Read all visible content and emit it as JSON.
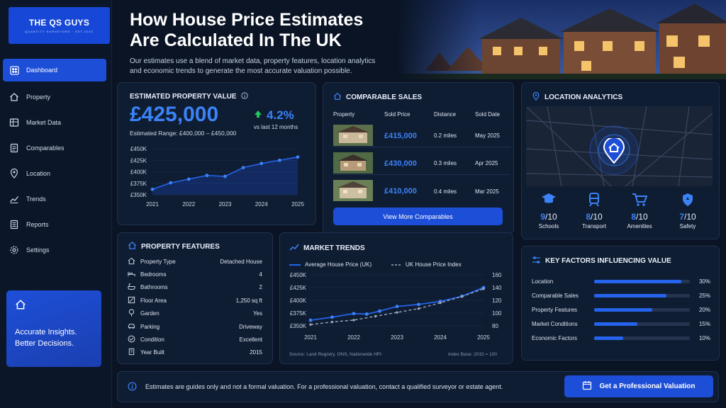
{
  "sidebar": {
    "logo_title": "THE QS GUYS",
    "logo_tagline": "QUANTITY SURVEYORS · EST 2020",
    "items": [
      {
        "label": "Dashboard",
        "icon": "dashboard-icon",
        "active": true
      },
      {
        "label": "Property",
        "icon": "home-icon"
      },
      {
        "label": "Market Data",
        "icon": "table-icon"
      },
      {
        "label": "Comparables",
        "icon": "document-icon"
      },
      {
        "label": "Location",
        "icon": "map-pin-icon"
      },
      {
        "label": "Trends",
        "icon": "trend-icon"
      },
      {
        "label": "Reports",
        "icon": "report-icon"
      },
      {
        "label": "Settings",
        "icon": "gear-icon"
      }
    ],
    "insight_line1": "Accurate Insights.",
    "insight_line2": "Better Decisions."
  },
  "header": {
    "title_line1": "How House Price Estimates",
    "title_line2": "Are Calculated In The UK",
    "subtitle_line1": "Our estimates use a blend of market data, property features, location analytics",
    "subtitle_line2": "and economic trends to generate the most accurate valuation possible."
  },
  "estimate": {
    "title": "ESTIMATED PROPERTY VALUE",
    "value": "£425,000",
    "change": "4.2%",
    "change_note": "vs last 12 months",
    "range": "Estimated Range: £400,000 – £450,000"
  },
  "chart_data": [
    {
      "type": "line",
      "x": [
        "2021",
        "2022",
        "2023",
        "2024",
        "2025"
      ],
      "y_ticks": [
        "£350K",
        "£375K",
        "£400K",
        "£425K",
        "£450K"
      ],
      "ylim": [
        350000,
        450000
      ],
      "series": [
        {
          "values": [
            {
              "x": 2021.0,
              "y": 362000
            },
            {
              "x": 2021.5,
              "y": 376000
            },
            {
              "x": 2022.0,
              "y": 384000
            },
            {
              "x": 2022.5,
              "y": 392000
            },
            {
              "x": 2023.0,
              "y": 390000
            },
            {
              "x": 2023.5,
              "y": 409000
            },
            {
              "x": 2024.0,
              "y": 418000
            },
            {
              "x": 2024.5,
              "y": 425000
            },
            {
              "x": 2025.0,
              "y": 432000
            }
          ]
        }
      ]
    },
    {
      "type": "line",
      "title": "MARKET TRENDS",
      "x": [
        "2021",
        "2022",
        "2023",
        "2024",
        "2025"
      ],
      "y_ticks": [
        "£350K",
        "£375K",
        "£400K",
        "£425K",
        "£450K"
      ],
      "y2_ticks": [
        "80",
        "100",
        "120",
        "140",
        "160"
      ],
      "ylim": [
        350000,
        450000
      ],
      "y2lim": [
        80,
        160
      ],
      "series": [
        {
          "name": "Average House Price (UK)",
          "style": "solid",
          "axis": "left",
          "values": [
            {
              "x": 2021.0,
              "y": 361000
            },
            {
              "x": 2021.5,
              "y": 367000
            },
            {
              "x": 2022.0,
              "y": 374000
            },
            {
              "x": 2022.3,
              "y": 373000
            },
            {
              "x": 2022.6,
              "y": 379000
            },
            {
              "x": 2023.0,
              "y": 388000
            },
            {
              "x": 2023.5,
              "y": 392000
            },
            {
              "x": 2024.0,
              "y": 398000
            },
            {
              "x": 2024.5,
              "y": 408000
            },
            {
              "x": 2025.0,
              "y": 425000
            }
          ]
        },
        {
          "name": "UK House Price Index",
          "style": "dashed",
          "axis": "right",
          "values": [
            {
              "x": 2021.0,
              "y": 82
            },
            {
              "x": 2021.5,
              "y": 86
            },
            {
              "x": 2022.0,
              "y": 89
            },
            {
              "x": 2022.5,
              "y": 95
            },
            {
              "x": 2023.0,
              "y": 101
            },
            {
              "x": 2023.5,
              "y": 107
            },
            {
              "x": 2024.0,
              "y": 116
            },
            {
              "x": 2024.5,
              "y": 126
            },
            {
              "x": 2025.0,
              "y": 138
            }
          ]
        }
      ],
      "source": "Source: Land Registry, ONS, Nationwide HPI",
      "index_note": "Index Base: 2015 = 100"
    }
  ],
  "comparables": {
    "title": "COMPARABLE SALES",
    "headers": [
      "Property",
      "Sold Price",
      "Distance",
      "Sold Date"
    ],
    "rows": [
      {
        "price": "£415,000",
        "distance": "0.2 miles",
        "date": "May 2025"
      },
      {
        "price": "£430,000",
        "distance": "0.3 miles",
        "date": "Apr 2025"
      },
      {
        "price": "£410,000",
        "distance": "0.4 miles",
        "date": "Mar 2025"
      }
    ],
    "button": "View More Comparables"
  },
  "location": {
    "title": "LOCATION ANALYTICS",
    "scores": [
      {
        "score": "9",
        "out": "/10",
        "label": "Schools",
        "icon": "school-icon"
      },
      {
        "score": "8",
        "out": "/10",
        "label": "Transport",
        "icon": "train-icon"
      },
      {
        "score": "8",
        "out": "/10",
        "label": "Amenities",
        "icon": "cart-icon"
      },
      {
        "score": "7",
        "out": "/10",
        "label": "Safety",
        "icon": "shield-icon"
      }
    ]
  },
  "features": {
    "title": "PROPERTY FEATURES",
    "rows": [
      {
        "label": "Property Type",
        "value": "Detached House",
        "icon": "house-icon"
      },
      {
        "label": "Bedrooms",
        "value": "4",
        "icon": "bed-icon"
      },
      {
        "label": "Bathrooms",
        "value": "2",
        "icon": "bath-icon"
      },
      {
        "label": "Floor Area",
        "value": "1,250 sq ft",
        "icon": "area-icon"
      },
      {
        "label": "Garden",
        "value": "Yes",
        "icon": "tree-icon"
      },
      {
        "label": "Parking",
        "value": "Driveway",
        "icon": "car-icon"
      },
      {
        "label": "Condition",
        "value": "Excellent",
        "icon": "check-icon"
      },
      {
        "label": "Year Built",
        "value": "2015",
        "icon": "building-icon"
      }
    ]
  },
  "factors": {
    "title": "KEY FACTORS INFLUENCING VALUE",
    "rows": [
      {
        "label": "Location",
        "pct": "30%",
        "value": 30
      },
      {
        "label": "Comparable Sales",
        "pct": "25%",
        "value": 25
      },
      {
        "label": "Property Features",
        "pct": "20%",
        "value": 20
      },
      {
        "label": "Market Conditions",
        "pct": "15%",
        "value": 15
      },
      {
        "label": "Economic Factors",
        "pct": "10%",
        "value": 10
      }
    ]
  },
  "footer": {
    "note": "Estimates are guides only and not a formal valuation. For a professional valuation, contact a qualified surveyor or estate agent.",
    "button": "Get a Professional Valuation"
  },
  "colors": {
    "accent": "#1d4ed8",
    "line": "#2563eb",
    "up": "#22c55e",
    "bg": "#0a1424"
  }
}
